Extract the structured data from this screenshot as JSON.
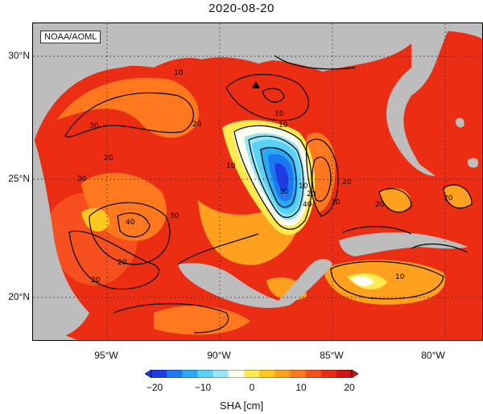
{
  "title": "2020-08-20",
  "credit": "NOAA/AOML",
  "lat_labels": [
    "30°N",
    "25°N",
    "20°N"
  ],
  "lon_labels": [
    "95°W",
    "90°W",
    "85°W",
    "80°W"
  ],
  "colorbar": {
    "label": "SHA [cm]",
    "ticks": [
      "−20",
      "−10",
      "0",
      "10",
      "20"
    ],
    "colors": [
      "#1e3ce6",
      "#1e78f0",
      "#28aaf5",
      "#5ad2f5",
      "#96e6f5",
      "#fffff0",
      "#ffeb50",
      "#ffc81e",
      "#ffa01e",
      "#ff781e",
      "#f5501e",
      "#eb2d14",
      "#d21414"
    ]
  },
  "contour_labels": [
    "10",
    "10",
    "20",
    "30",
    "20",
    "30",
    "40",
    "30",
    "20",
    "20",
    "10",
    "10",
    "10",
    "20",
    "30",
    "40",
    "20",
    "30",
    "20",
    "10",
    "20"
  ],
  "marker": "site-marker",
  "colors": {
    "land": "#bdbdbd",
    "ocean_warm": "#eb2d14",
    "ocean_orange": "#ff781e",
    "eddy_core": "#1e3ce6"
  }
}
